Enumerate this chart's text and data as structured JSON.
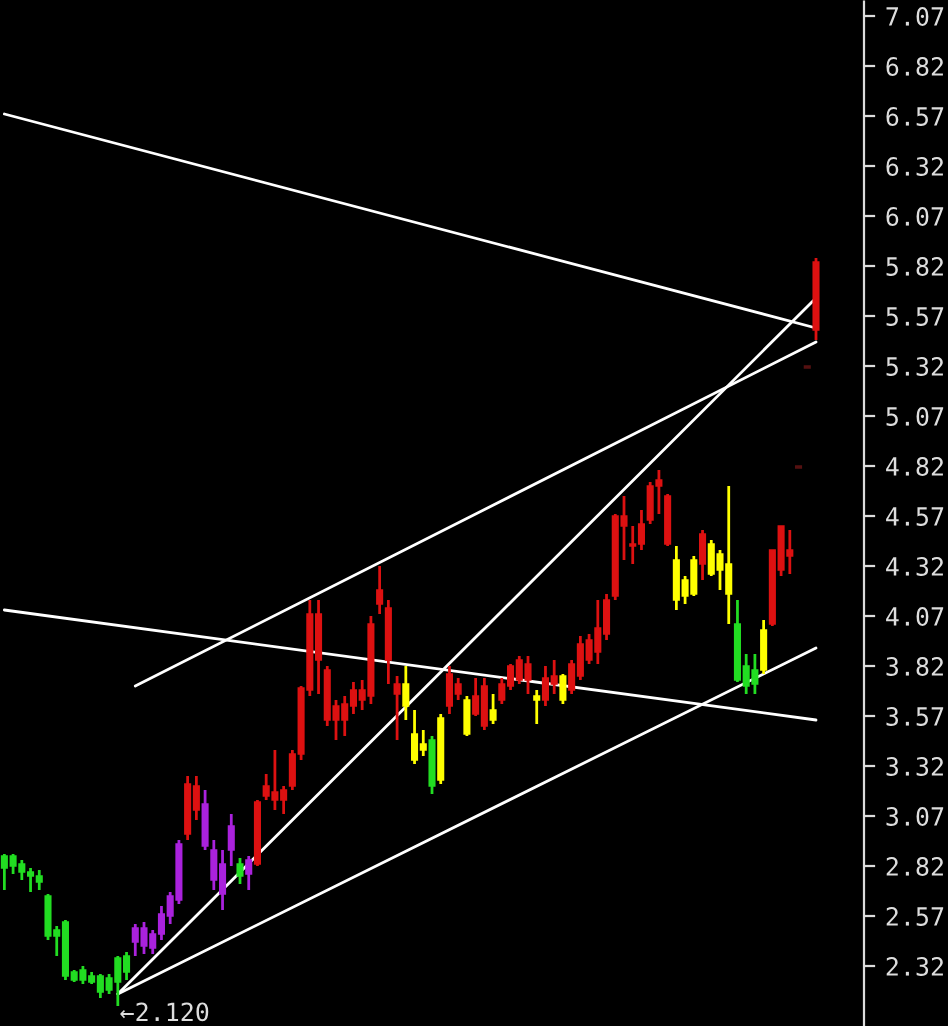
{
  "chart_data": {
    "type": "candlestick",
    "categories": [
      null,
      null,
      null,
      null,
      null,
      null,
      null,
      null,
      null,
      null,
      null,
      null,
      null,
      null,
      null,
      null,
      null,
      null,
      null,
      null,
      null,
      null,
      null,
      null,
      null,
      null,
      null,
      null,
      null,
      null,
      null,
      null,
      null,
      null,
      null,
      null,
      null,
      null,
      null,
      null,
      null,
      null,
      null,
      null,
      null,
      null,
      null,
      null,
      null,
      null,
      null,
      null,
      null,
      null,
      null,
      null,
      null,
      null,
      null,
      null,
      null,
      null,
      null,
      null,
      null,
      null,
      null,
      null,
      null,
      null,
      null,
      null,
      null,
      null,
      null,
      null,
      null,
      null,
      null,
      null,
      null,
      null,
      null,
      null,
      null,
      null,
      null,
      null,
      null,
      null,
      null,
      null,
      null,
      null
    ],
    "ohlc": [
      [
        2.87,
        2.88,
        2.7,
        2.81
      ],
      [
        2.87,
        2.88,
        2.78,
        2.82
      ],
      [
        2.83,
        2.85,
        2.75,
        2.79
      ],
      [
        2.79,
        2.81,
        2.69,
        2.77
      ],
      [
        2.77,
        2.8,
        2.7,
        2.74
      ],
      [
        2.67,
        2.68,
        2.45,
        2.47
      ],
      [
        2.5,
        2.52,
        2.37,
        2.47
      ],
      [
        2.54,
        2.55,
        2.25,
        2.27
      ],
      [
        2.29,
        2.3,
        2.24,
        2.25
      ],
      [
        2.3,
        2.32,
        2.23,
        2.25
      ],
      [
        2.27,
        2.29,
        2.23,
        2.24
      ],
      [
        2.27,
        2.28,
        2.16,
        2.19
      ],
      [
        2.26,
        2.28,
        2.18,
        2.2
      ],
      [
        2.36,
        2.37,
        2.12,
        2.24
      ],
      [
        2.37,
        2.39,
        2.25,
        2.29
      ],
      [
        2.51,
        2.53,
        2.37,
        2.44
      ],
      [
        2.51,
        2.54,
        2.38,
        2.42
      ],
      [
        2.48,
        2.5,
        2.38,
        2.41
      ],
      [
        2.58,
        2.62,
        2.45,
        2.48
      ],
      [
        2.67,
        2.69,
        2.53,
        2.57
      ],
      [
        2.93,
        2.95,
        2.63,
        2.65
      ],
      [
        2.98,
        3.27,
        2.95,
        3.23
      ],
      [
        3.1,
        3.27,
        3.05,
        3.22
      ],
      [
        3.13,
        3.2,
        2.9,
        2.92
      ],
      [
        2.9,
        2.95,
        2.7,
        2.75
      ],
      [
        2.83,
        2.9,
        2.6,
        2.68
      ],
      [
        3.02,
        3.08,
        2.82,
        2.9
      ],
      [
        2.83,
        2.86,
        2.73,
        2.77
      ],
      [
        2.85,
        2.87,
        2.7,
        2.78
      ],
      [
        2.83,
        3.15,
        2.82,
        3.14
      ],
      [
        3.17,
        3.28,
        3.15,
        3.22
      ],
      [
        3.15,
        3.4,
        3.1,
        3.19
      ],
      [
        3.15,
        3.22,
        3.08,
        3.2
      ],
      [
        3.22,
        3.4,
        3.2,
        3.38
      ],
      [
        3.38,
        3.72,
        3.35,
        3.71
      ],
      [
        3.7,
        4.15,
        3.67,
        4.08
      ],
      [
        3.85,
        4.15,
        3.68,
        4.08
      ],
      [
        3.55,
        3.82,
        3.52,
        3.8
      ],
      [
        3.55,
        3.65,
        3.45,
        3.62
      ],
      [
        3.55,
        3.67,
        3.47,
        3.63
      ],
      [
        3.62,
        3.74,
        3.58,
        3.7
      ],
      [
        3.65,
        3.75,
        3.6,
        3.7
      ],
      [
        3.67,
        4.07,
        3.63,
        4.03
      ],
      [
        4.13,
        4.32,
        4.08,
        4.2
      ],
      [
        3.85,
        4.15,
        3.73,
        4.11
      ],
      [
        3.68,
        3.77,
        3.45,
        3.73
      ],
      [
        3.73,
        3.82,
        3.55,
        3.62
      ],
      [
        3.48,
        3.6,
        3.33,
        3.35
      ],
      [
        3.43,
        3.5,
        3.37,
        3.4
      ],
      [
        3.45,
        3.47,
        3.18,
        3.22
      ],
      [
        3.56,
        3.58,
        3.23,
        3.25
      ],
      [
        3.62,
        3.82,
        3.58,
        3.78
      ],
      [
        3.68,
        3.76,
        3.65,
        3.73
      ],
      [
        3.65,
        3.67,
        3.47,
        3.48
      ],
      [
        3.58,
        3.76,
        3.57,
        3.67
      ],
      [
        3.52,
        3.76,
        3.5,
        3.72
      ],
      [
        3.6,
        3.68,
        3.53,
        3.55
      ],
      [
        3.65,
        3.76,
        3.63,
        3.73
      ],
      [
        3.72,
        3.83,
        3.7,
        3.82
      ],
      [
        3.75,
        3.87,
        3.73,
        3.85
      ],
      [
        3.75,
        3.87,
        3.68,
        3.83
      ],
      [
        3.67,
        3.7,
        3.53,
        3.65
      ],
      [
        3.65,
        3.82,
        3.62,
        3.76
      ],
      [
        3.73,
        3.85,
        3.68,
        3.77
      ],
      [
        3.77,
        3.78,
        3.63,
        3.65
      ],
      [
        3.7,
        3.85,
        3.68,
        3.83
      ],
      [
        3.77,
        3.97,
        3.75,
        3.93
      ],
      [
        3.85,
        3.98,
        3.83,
        3.95
      ],
      [
        3.89,
        4.15,
        3.83,
        4.01
      ],
      [
        3.98,
        4.18,
        3.95,
        4.15
      ],
      [
        4.17,
        4.58,
        4.15,
        4.57
      ],
      [
        4.52,
        4.67,
        4.35,
        4.57
      ],
      [
        4.42,
        4.52,
        4.33,
        4.43
      ],
      [
        4.43,
        4.6,
        4.4,
        4.53
      ],
      [
        4.55,
        4.74,
        4.53,
        4.72
      ],
      [
        4.72,
        4.8,
        4.58,
        4.75
      ],
      [
        4.43,
        4.68,
        4.42,
        4.67
      ],
      [
        4.35,
        4.42,
        4.1,
        4.15
      ],
      [
        4.25,
        4.27,
        4.13,
        4.17
      ],
      [
        4.35,
        4.37,
        4.17,
        4.18
      ],
      [
        4.33,
        4.5,
        4.25,
        4.48
      ],
      [
        4.43,
        4.45,
        4.27,
        4.28
      ],
      [
        4.38,
        4.4,
        4.2,
        4.3
      ],
      [
        4.33,
        4.72,
        4.03,
        4.18
      ],
      [
        4.03,
        4.15,
        3.74,
        3.75
      ],
      [
        3.82,
        3.88,
        3.68,
        3.72
      ],
      [
        3.8,
        3.88,
        3.68,
        3.73
      ],
      [
        4.0,
        4.05,
        3.78,
        3.8
      ],
      [
        4.03,
        4.4,
        4.02,
        4.4
      ],
      [
        4.3,
        4.52,
        4.27,
        4.52
      ],
      [
        4.37,
        4.5,
        4.28,
        4.4
      ],
      [
        4.82,
        4.82,
        4.81,
        4.81
      ],
      [
        5.32,
        5.32,
        5.31,
        5.31
      ],
      [
        5.5,
        5.86,
        5.45,
        5.84
      ]
    ],
    "colors": [
      "#22dd22",
      "#22dd22",
      "#22dd22",
      "#22dd22",
      "#22dd22",
      "#22dd22",
      "#22dd22",
      "#22dd22",
      "#22dd22",
      "#22dd22",
      "#22dd22",
      "#22dd22",
      "#22dd22",
      "#22dd22",
      "#22dd22",
      "#aa22dd",
      "#aa22dd",
      "#aa22dd",
      "#aa22dd",
      "#aa22dd",
      "#aa22dd",
      "#dd1111",
      "#dd1111",
      "#aa22dd",
      "#aa22dd",
      "#aa22dd",
      "#aa22dd",
      "#22dd22",
      "#aa22dd",
      "#dd1111",
      "#dd1111",
      "#dd1111",
      "#dd1111",
      "#dd1111",
      "#dd1111",
      "#dd1111",
      "#dd1111",
      "#dd1111",
      "#dd1111",
      "#dd1111",
      "#dd1111",
      "#dd1111",
      "#dd1111",
      "#dd1111",
      "#dd1111",
      "#dd1111",
      "#ffff00",
      "#ffff00",
      "#ffff00",
      "#22dd22",
      "#ffff00",
      "#dd1111",
      "#dd1111",
      "#ffff00",
      "#dd1111",
      "#dd1111",
      "#ffff00",
      "#dd1111",
      "#dd1111",
      "#dd1111",
      "#dd1111",
      "#ffff00",
      "#dd1111",
      "#dd1111",
      "#ffff00",
      "#dd1111",
      "#dd1111",
      "#dd1111",
      "#dd1111",
      "#dd1111",
      "#dd1111",
      "#dd1111",
      "#dd1111",
      "#dd1111",
      "#dd1111",
      "#dd1111",
      "#dd1111",
      "#ffff00",
      "#ffff00",
      "#ffff00",
      "#dd1111",
      "#ffff00",
      "#ffff00",
      "#ffff00",
      "#22dd22",
      "#22dd22",
      "#22dd22",
      "#ffff00",
      "#dd1111",
      "#dd1111",
      "#dd1111",
      "#551111",
      "#551111",
      "#dd1111"
    ],
    "series": [
      {
        "type": "line",
        "color": "#ffffff",
        "values": [
          6.58,
          null,
          null,
          null,
          null,
          null,
          null,
          null,
          null,
          null,
          null,
          null,
          null,
          null,
          null,
          null,
          null,
          null,
          null,
          null,
          null,
          null,
          null,
          null,
          null,
          null,
          null,
          null,
          null,
          null,
          null,
          null,
          null,
          null,
          null,
          null,
          null,
          null,
          null,
          null,
          null,
          null,
          null,
          null,
          null,
          null,
          null,
          null,
          null,
          null,
          null,
          null,
          null,
          null,
          null,
          null,
          null,
          null,
          null,
          null,
          null,
          null,
          null,
          null,
          null,
          null,
          null,
          null,
          null,
          null,
          null,
          null,
          null,
          null,
          null,
          null,
          null,
          null,
          null,
          null,
          null,
          null,
          null,
          null,
          null,
          null,
          null,
          null,
          null,
          null,
          null,
          null,
          null,
          5.51
        ]
      },
      {
        "type": "line",
        "color": "#ffffff",
        "values": [
          4.1,
          null,
          null,
          null,
          null,
          null,
          null,
          null,
          null,
          null,
          null,
          null,
          null,
          null,
          null,
          null,
          null,
          null,
          null,
          null,
          null,
          null,
          null,
          null,
          null,
          null,
          null,
          null,
          null,
          null,
          null,
          null,
          null,
          null,
          null,
          null,
          null,
          null,
          null,
          null,
          null,
          null,
          null,
          null,
          null,
          null,
          null,
          null,
          null,
          null,
          null,
          null,
          null,
          null,
          null,
          null,
          null,
          null,
          null,
          null,
          null,
          null,
          null,
          null,
          null,
          null,
          null,
          null,
          null,
          null,
          null,
          null,
          null,
          null,
          null,
          null,
          null,
          null,
          null,
          null,
          null,
          null,
          null,
          null,
          null,
          null,
          null,
          null,
          null,
          null,
          null,
          null,
          null,
          3.55
        ]
      },
      {
        "type": "line",
        "color": "#ffffff",
        "values": [
          null,
          null,
          null,
          null,
          null,
          null,
          null,
          null,
          null,
          null,
          null,
          null,
          null,
          null,
          null,
          3.72,
          null,
          null,
          null,
          null,
          null,
          null,
          null,
          null,
          null,
          null,
          null,
          null,
          null,
          null,
          null,
          null,
          null,
          null,
          null,
          null,
          null,
          null,
          null,
          null,
          null,
          null,
          null,
          null,
          null,
          null,
          null,
          null,
          null,
          null,
          null,
          null,
          null,
          null,
          null,
          null,
          null,
          null,
          null,
          null,
          null,
          null,
          null,
          null,
          null,
          null,
          null,
          null,
          null,
          null,
          null,
          null,
          null,
          null,
          null,
          null,
          null,
          null,
          null,
          null,
          null,
          null,
          null,
          null,
          null,
          null,
          null,
          null,
          null,
          null,
          null,
          null,
          null,
          5.44
        ]
      },
      {
        "type": "line",
        "color": "#ffffff",
        "values": [
          null,
          null,
          null,
          null,
          null,
          null,
          null,
          null,
          null,
          null,
          null,
          null,
          null,
          2.18,
          null,
          null,
          null,
          null,
          null,
          null,
          null,
          null,
          null,
          null,
          null,
          null,
          null,
          null,
          null,
          null,
          null,
          null,
          null,
          null,
          null,
          null,
          null,
          null,
          null,
          null,
          null,
          null,
          null,
          null,
          null,
          null,
          null,
          null,
          null,
          null,
          null,
          null,
          null,
          null,
          null,
          null,
          null,
          null,
          null,
          null,
          null,
          null,
          null,
          null,
          null,
          null,
          null,
          null,
          null,
          null,
          null,
          null,
          null,
          null,
          null,
          null,
          null,
          null,
          null,
          null,
          null,
          null,
          null,
          null,
          null,
          null,
          null,
          null,
          null,
          null,
          null,
          null,
          null,
          5.66
        ]
      },
      {
        "type": "line",
        "color": "#ffffff",
        "values": [
          null,
          null,
          null,
          null,
          null,
          null,
          null,
          null,
          null,
          null,
          null,
          null,
          null,
          2.18,
          null,
          null,
          null,
          null,
          null,
          null,
          null,
          null,
          null,
          null,
          null,
          null,
          null,
          null,
          null,
          null,
          null,
          null,
          null,
          null,
          null,
          null,
          null,
          null,
          null,
          null,
          null,
          null,
          null,
          null,
          null,
          null,
          null,
          null,
          null,
          null,
          null,
          null,
          null,
          null,
          null,
          null,
          null,
          null,
          null,
          null,
          null,
          null,
          null,
          null,
          null,
          null,
          null,
          null,
          null,
          null,
          null,
          null,
          null,
          null,
          null,
          null,
          null,
          null,
          null,
          null,
          null,
          null,
          null,
          null,
          null,
          null,
          null,
          null,
          null,
          null,
          null,
          null,
          null,
          3.91
        ]
      }
    ],
    "annotations": [
      "←2.120"
    ],
    "ylim": [
      2.02,
      7.15
    ],
    "yticks": [
      2.32,
      2.57,
      2.82,
      3.07,
      3.32,
      3.57,
      3.82,
      4.07,
      4.32,
      4.57,
      4.82,
      5.07,
      5.32,
      5.57,
      5.82,
      6.07,
      6.32,
      6.57,
      6.82,
      7.07
    ],
    "tick_labels": "y"
  }
}
